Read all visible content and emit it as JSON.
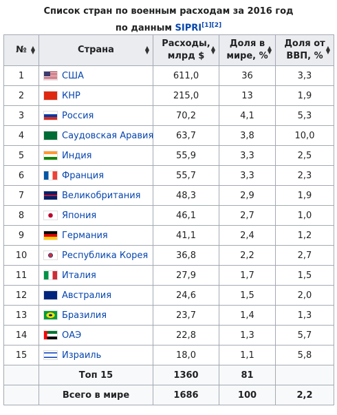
{
  "caption": {
    "line1": "Список стран по военным расходам за 2016 год",
    "prefix": "по данным",
    "link": "SIPRI",
    "refs": [
      "[1]",
      "[2]"
    ]
  },
  "table": {
    "header": [
      "№",
      "Страна",
      "Расходы, млрд $",
      "Доля в мире, %",
      "Доля от ВВП, %"
    ],
    "rows": [
      [
        "1",
        "США",
        "611,0",
        "36",
        "3,3"
      ],
      [
        "2",
        "КНР",
        "215,0",
        "13",
        "1,9"
      ],
      [
        "3",
        "Россия",
        "70,2",
        "4,1",
        "5,3"
      ],
      [
        "4",
        "Саудовская Аравия",
        "63,7",
        "3,8",
        "10,0"
      ],
      [
        "5",
        "Индия",
        "55,9",
        "3,3",
        "2,5"
      ],
      [
        "6",
        "Франция",
        "55,7",
        "3,3",
        "2,3"
      ],
      [
        "7",
        "Великобритания",
        "48,3",
        "2,9",
        "1,9"
      ],
      [
        "8",
        "Япония",
        "46,1",
        "2,7",
        "1,0"
      ],
      [
        "9",
        "Германия",
        "41,1",
        "2,4",
        "1,2"
      ],
      [
        "10",
        "Республика Корея",
        "36,8",
        "2,2",
        "2,7"
      ],
      [
        "11",
        "Италия",
        "27,9",
        "1,7",
        "1,5"
      ],
      [
        "12",
        "Австралия",
        "24,6",
        "1,5",
        "2,0"
      ],
      [
        "13",
        "Бразилия",
        "23,7",
        "1,4",
        "1,3"
      ],
      [
        "14",
        "ОАЭ",
        "22,8",
        "1,3",
        "5,7"
      ],
      [
        "15",
        "Израиль",
        "18,0",
        "1,1",
        "5,8"
      ]
    ],
    "footer": [
      {
        "label": "Топ 15",
        "spending": "1360",
        "share": "81"
      },
      {
        "label": "Всего в мире",
        "spending": "1686",
        "share": "100",
        "gdp": "2,2"
      }
    ]
  }
}
